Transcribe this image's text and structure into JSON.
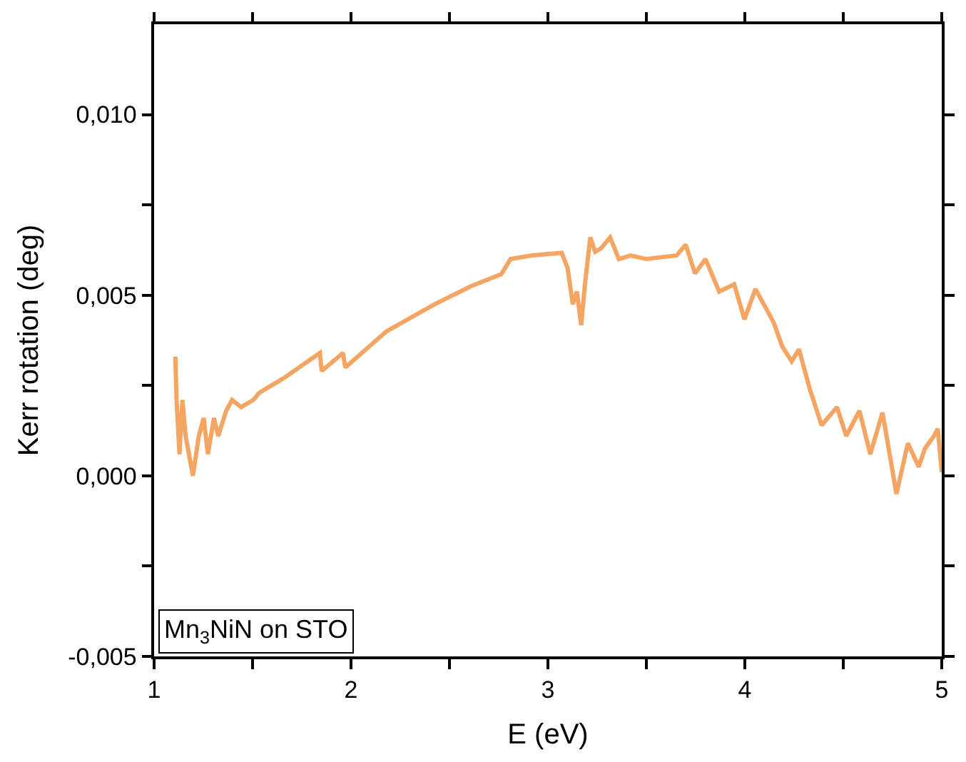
{
  "chart_data": {
    "type": "line",
    "xlabel": "E (eV)",
    "ylabel": "Kerr rotation (deg)",
    "xlim": [
      1,
      5
    ],
    "ylim": [
      -0.005,
      0.0125
    ],
    "xticks": [
      1,
      {
        "value": 1.5,
        "label": null
      },
      2,
      {
        "value": 2.5,
        "label": null
      },
      3,
      {
        "value": 3.5,
        "label": null
      },
      4,
      {
        "value": 4.5,
        "label": null
      },
      5
    ],
    "yticks": [
      {
        "value": -0.005,
        "label": "-0,005"
      },
      {
        "value": -0.0025,
        "label": null
      },
      {
        "value": 0,
        "label": "0,000"
      },
      {
        "value": 0.0025,
        "label": null
      },
      {
        "value": 0.005,
        "label": "0,005"
      },
      {
        "value": 0.0075,
        "label": null
      },
      {
        "value": 0.01,
        "label": "0,010"
      }
    ],
    "marker": "none",
    "line_style": "solid",
    "annotations": [
      "Mn$_{3}$NiN on STO"
    ],
    "series": [
      {
        "color": "#f5a462",
        "x": [
          1.108,
          1.114,
          1.129,
          1.144,
          1.16,
          1.197,
          1.227,
          1.252,
          1.273,
          1.304,
          1.326,
          1.366,
          1.396,
          1.442,
          1.504,
          1.535,
          1.657,
          1.842,
          1.851,
          1.959,
          1.971,
          2.18,
          2.425,
          2.61,
          2.763,
          2.81,
          2.917,
          3.07,
          3.1,
          3.126,
          3.147,
          3.169,
          3.187,
          3.215,
          3.24,
          3.27,
          3.316,
          3.36,
          3.42,
          3.5,
          3.654,
          3.7,
          3.747,
          3.8,
          3.87,
          3.946,
          3.998,
          4.054,
          4.146,
          4.19,
          4.238,
          4.275,
          4.33,
          4.39,
          4.468,
          4.515,
          4.582,
          4.637,
          4.699,
          4.77,
          4.828,
          4.883,
          4.914,
          4.96,
          4.98,
          5.0
        ],
        "values": [
          0.0033,
          0.0021,
          0.0006,
          0.0021,
          0.0011,
          0.0,
          0.0011,
          0.0016,
          0.0006,
          0.0016,
          0.0011,
          0.0018,
          0.0021,
          0.0019,
          0.0021,
          0.0023,
          0.0027,
          0.0034,
          0.0029,
          0.0034,
          0.003,
          0.004,
          0.00475,
          0.00525,
          0.00558,
          0.006,
          0.0061,
          0.00617,
          0.00575,
          0.00475,
          0.0051,
          0.00417,
          0.00525,
          0.0066,
          0.0062,
          0.0063,
          0.0066,
          0.006,
          0.0061,
          0.006,
          0.0061,
          0.0064,
          0.0056,
          0.006,
          0.0051,
          0.0053,
          0.00433,
          0.00517,
          0.00425,
          0.00358,
          0.00317,
          0.0035,
          0.0024,
          0.0014,
          0.0019,
          0.0011,
          0.0018,
          0.0006,
          0.00175,
          -0.0005,
          0.0009,
          0.00025,
          0.00075,
          0.0011,
          0.0013,
          0.0001
        ]
      }
    ]
  }
}
